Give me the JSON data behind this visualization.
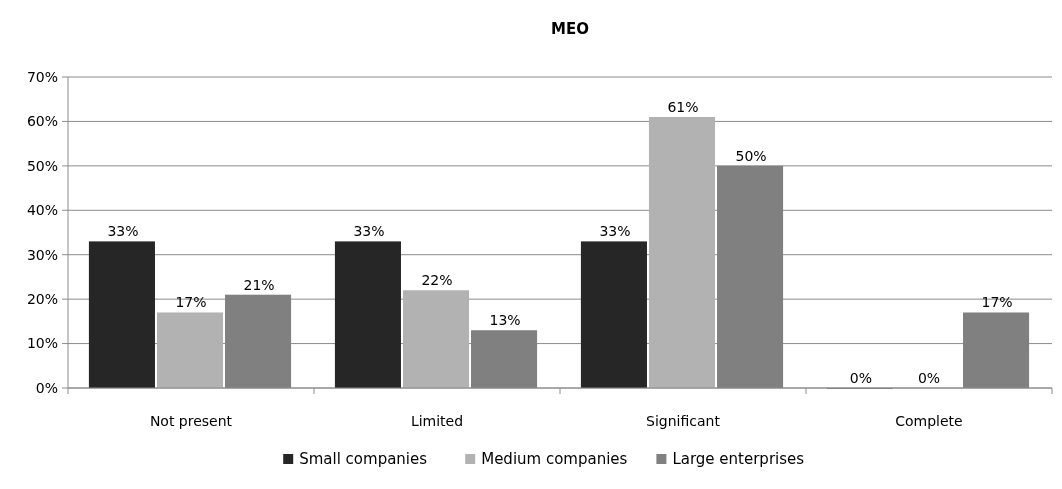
{
  "chart_data": {
    "type": "bar",
    "title": "MEO",
    "categories": [
      "Not present",
      "Limited",
      "Significant",
      "Complete"
    ],
    "series": [
      {
        "name": "Small companies",
        "color": "#262626",
        "values": [
          33,
          33,
          33,
          0
        ],
        "value_labels": [
          "33%",
          "33%",
          "33%",
          "0%"
        ]
      },
      {
        "name": "Medium companies",
        "color": "#b2b2b2",
        "values": [
          17,
          22,
          61,
          0
        ],
        "value_labels": [
          "17%",
          "22%",
          "61%",
          "0%"
        ]
      },
      {
        "name": "Large enterprises",
        "color": "#808080",
        "values": [
          21,
          13,
          50,
          17
        ],
        "value_labels": [
          "21%",
          "13%",
          "50%",
          "17%"
        ]
      }
    ],
    "ylim": [
      0,
      70
    ],
    "yticks": [
      {
        "value": 0,
        "label": "0%"
      },
      {
        "value": 10,
        "label": "10%"
      },
      {
        "value": 20,
        "label": "20%"
      },
      {
        "value": 30,
        "label": "30%"
      },
      {
        "value": 40,
        "label": "40%"
      },
      {
        "value": 50,
        "label": "50%"
      },
      {
        "value": 60,
        "label": "60%"
      },
      {
        "value": 70,
        "label": "70%"
      }
    ],
    "grid": "y",
    "legend": "bottom"
  }
}
